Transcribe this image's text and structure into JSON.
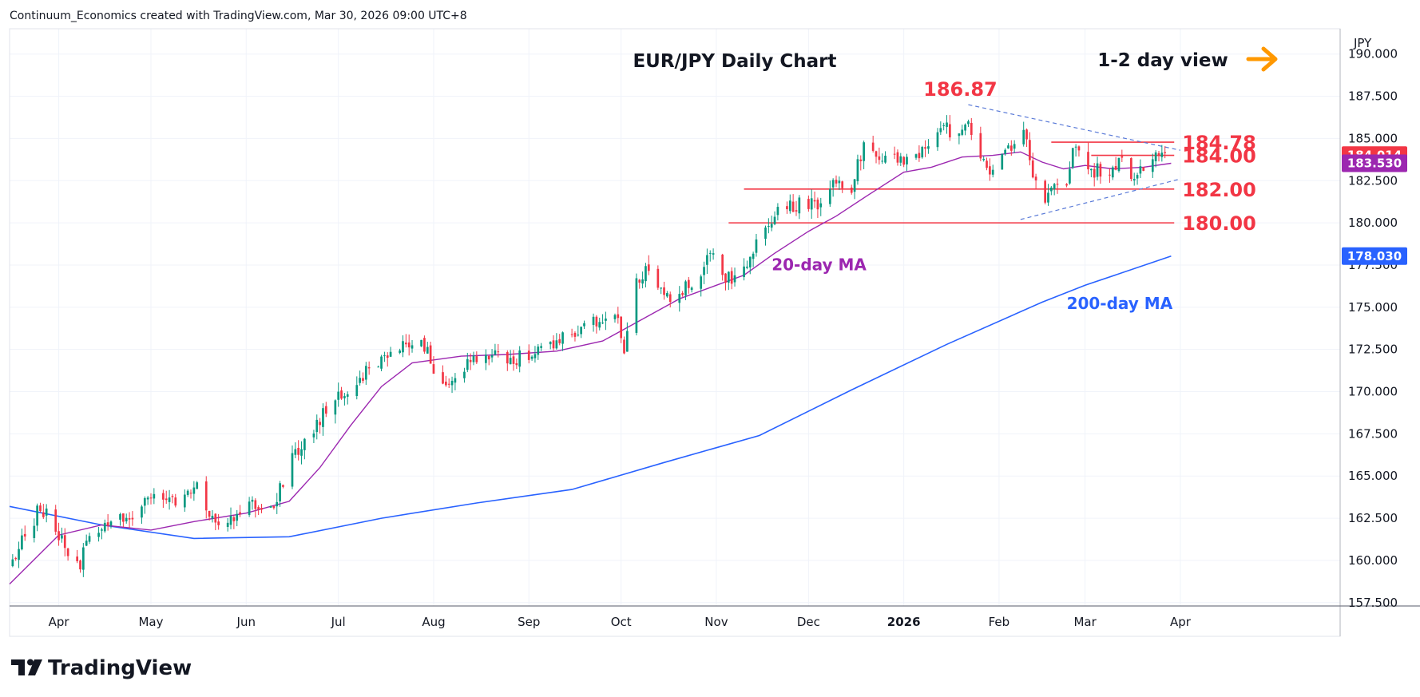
{
  "header": {
    "caption": "Continuum_Economics created with TradingView.com, Mar 30, 2026 09:00 UTC+8"
  },
  "footer": {
    "logo_text": "TradingView"
  },
  "chart_data": {
    "type": "candlestick",
    "title": "EUR/JPY Daily Chart",
    "view_note": "1-2 day view",
    "currency_label": "JPY",
    "y_ticks": [
      157.5,
      160,
      162.5,
      165,
      167.5,
      170,
      172.5,
      175,
      177.5,
      180,
      182.5,
      185,
      187.5,
      190
    ],
    "y_tick_labels": [
      "157.500",
      "160.000",
      "162.500",
      "165.000",
      "167.500",
      "170.000",
      "172.500",
      "175.000",
      "177.500",
      "180.000",
      "182.500",
      "185.000",
      "187.500",
      "190.000"
    ],
    "ylim": [
      157.3,
      191.5
    ],
    "grid": true,
    "x_range": [
      "2025-03-16",
      "2026-05-23"
    ],
    "x_ticks": [
      {
        "date": "2025-04-01",
        "label": "Apr",
        "bold": false
      },
      {
        "date": "2025-05-01",
        "label": "May",
        "bold": false
      },
      {
        "date": "2025-06-01",
        "label": "Jun",
        "bold": false
      },
      {
        "date": "2025-07-01",
        "label": "Jul",
        "bold": false
      },
      {
        "date": "2025-08-01",
        "label": "Aug",
        "bold": false
      },
      {
        "date": "2025-09-01",
        "label": "Sep",
        "bold": false
      },
      {
        "date": "2025-10-01",
        "label": "Oct",
        "bold": false
      },
      {
        "date": "2025-11-01",
        "label": "Nov",
        "bold": false
      },
      {
        "date": "2025-12-01",
        "label": "Dec",
        "bold": false
      },
      {
        "date": "2026-01-01",
        "label": "2026",
        "bold": true
      },
      {
        "date": "2026-02-01",
        "label": "Feb",
        "bold": false
      },
      {
        "date": "2026-03-01",
        "label": "Mar",
        "bold": false
      },
      {
        "date": "2026-04-01",
        "label": "Apr",
        "bold": false
      }
    ],
    "price_path": [
      [
        "2025-03-17",
        160.0
      ],
      [
        "2025-03-26",
        163.2
      ],
      [
        "2025-04-04",
        160.6
      ],
      [
        "2025-04-08",
        159.6
      ],
      [
        "2025-04-11",
        161.8
      ],
      [
        "2025-04-18",
        162.4
      ],
      [
        "2025-04-25",
        162.7
      ],
      [
        "2025-05-02",
        163.8
      ],
      [
        "2025-05-09",
        163.4
      ],
      [
        "2025-05-15",
        164.6
      ],
      [
        "2025-05-21",
        162.7
      ],
      [
        "2025-05-27",
        162.2
      ],
      [
        "2025-06-03",
        163.4
      ],
      [
        "2025-06-10",
        163.4
      ],
      [
        "2025-06-17",
        166.4
      ],
      [
        "2025-06-24",
        168.2
      ],
      [
        "2025-06-30",
        169.4
      ],
      [
        "2025-07-08",
        170.8
      ],
      [
        "2025-07-15",
        172.1
      ],
      [
        "2025-07-22",
        172.6
      ],
      [
        "2025-07-28",
        173.1
      ],
      [
        "2025-08-01",
        171.4
      ],
      [
        "2025-08-06",
        170.6
      ],
      [
        "2025-08-13",
        172.0
      ],
      [
        "2025-08-20",
        172.3
      ],
      [
        "2025-08-27",
        171.9
      ],
      [
        "2025-09-03",
        172.4
      ],
      [
        "2025-09-10",
        172.8
      ],
      [
        "2025-09-17",
        173.8
      ],
      [
        "2025-09-24",
        174.4
      ],
      [
        "2025-09-29",
        174.9
      ],
      [
        "2025-10-02",
        172.6
      ],
      [
        "2025-10-06",
        176.4
      ],
      [
        "2025-10-09",
        177.2
      ],
      [
        "2025-10-15",
        175.6
      ],
      [
        "2025-10-20",
        175.8
      ],
      [
        "2025-10-27",
        177.2
      ],
      [
        "2025-10-30",
        178.4
      ],
      [
        "2025-11-04",
        176.8
      ],
      [
        "2025-11-07",
        176.6
      ],
      [
        "2025-11-14",
        178.6
      ],
      [
        "2025-11-20",
        180.6
      ],
      [
        "2025-11-27",
        181.1
      ],
      [
        "2025-12-05",
        181.2
      ],
      [
        "2025-12-10",
        182.6
      ],
      [
        "2025-12-15",
        182.1
      ],
      [
        "2025-12-19",
        184.7
      ],
      [
        "2025-12-24",
        183.9
      ],
      [
        "2026-01-02",
        183.6
      ],
      [
        "2026-01-08",
        184.2
      ],
      [
        "2026-01-14",
        185.6
      ],
      [
        "2026-01-19",
        185.2
      ],
      [
        "2026-01-22",
        186.2
      ],
      [
        "2026-01-26",
        183.6
      ],
      [
        "2026-01-30",
        182.8
      ],
      [
        "2026-02-05",
        184.6
      ],
      [
        "2026-02-09",
        185.9
      ],
      [
        "2026-02-12",
        182.6
      ],
      [
        "2026-02-16",
        181.5
      ],
      [
        "2026-02-19",
        182.2
      ],
      [
        "2026-02-23",
        182.5
      ],
      [
        "2026-02-25",
        184.4
      ],
      [
        "2026-02-28",
        183.9
      ],
      [
        "2026-03-04",
        183.1
      ],
      [
        "2026-03-09",
        183.2
      ],
      [
        "2026-03-13",
        183.6
      ],
      [
        "2026-03-17",
        182.4
      ],
      [
        "2026-03-20",
        183.3
      ],
      [
        "2026-03-24",
        184.2
      ],
      [
        "2026-03-29",
        184.0
      ]
    ],
    "ma20": {
      "name": "20-day MA",
      "color": "#9c27b0",
      "points": [
        [
          "2025-03-16",
          158.6
        ],
        [
          "2025-04-01",
          161.5
        ],
        [
          "2025-04-15",
          162.1
        ],
        [
          "2025-05-01",
          161.8
        ],
        [
          "2025-05-15",
          162.3
        ],
        [
          "2025-06-01",
          162.8
        ],
        [
          "2025-06-15",
          163.5
        ],
        [
          "2025-06-25",
          165.5
        ],
        [
          "2025-07-05",
          168.0
        ],
        [
          "2025-07-15",
          170.3
        ],
        [
          "2025-07-25",
          171.7
        ],
        [
          "2025-08-10",
          172.1
        ],
        [
          "2025-08-25",
          172.2
        ],
        [
          "2025-09-10",
          172.4
        ],
        [
          "2025-09-25",
          173.0
        ],
        [
          "2025-10-05",
          174.0
        ],
        [
          "2025-10-20",
          175.5
        ],
        [
          "2025-11-01",
          176.3
        ],
        [
          "2025-11-10",
          176.9
        ],
        [
          "2025-11-20",
          178.2
        ],
        [
          "2025-12-01",
          179.5
        ],
        [
          "2025-12-10",
          180.4
        ],
        [
          "2025-12-20",
          181.6
        ],
        [
          "2026-01-01",
          183.0
        ],
        [
          "2026-01-10",
          183.3
        ],
        [
          "2026-01-20",
          183.9
        ],
        [
          "2026-01-30",
          184.0
        ],
        [
          "2026-02-08",
          184.2
        ],
        [
          "2026-02-15",
          183.6
        ],
        [
          "2026-02-22",
          183.2
        ],
        [
          "2026-03-01",
          183.4
        ],
        [
          "2026-03-10",
          183.2
        ],
        [
          "2026-03-20",
          183.3
        ],
        [
          "2026-03-29",
          183.53
        ]
      ]
    },
    "ma200": {
      "name": "200-day MA",
      "color": "#2962ff",
      "points": [
        [
          "2025-03-16",
          163.2
        ],
        [
          "2025-04-15",
          162.1
        ],
        [
          "2025-05-15",
          161.3
        ],
        [
          "2025-06-15",
          161.4
        ],
        [
          "2025-07-15",
          162.5
        ],
        [
          "2025-08-15",
          163.4
        ],
        [
          "2025-09-15",
          164.2
        ],
        [
          "2025-10-15",
          165.8
        ],
        [
          "2025-11-15",
          167.4
        ],
        [
          "2025-12-15",
          170.1
        ],
        [
          "2026-01-15",
          172.8
        ],
        [
          "2026-02-15",
          175.3
        ],
        [
          "2026-03-01",
          176.3
        ],
        [
          "2026-03-29",
          178.03
        ]
      ]
    },
    "levels": [
      {
        "value": 184.78,
        "label": "184.78",
        "from": "2026-02-18",
        "to": "2026-03-30"
      },
      {
        "value": 184.0,
        "label": "184.00",
        "from": "2026-03-03",
        "to": "2026-03-30"
      },
      {
        "value": 182.0,
        "label": "182.00",
        "from": "2025-11-10",
        "to": "2026-03-30"
      },
      {
        "value": 180.0,
        "label": "180.00",
        "from": "2025-11-05",
        "to": "2026-03-30"
      }
    ],
    "peak_label": {
      "value": 186.87,
      "label": "186.87",
      "date": "2026-01-22"
    },
    "trendlines": [
      {
        "from": [
          "2026-01-22",
          187.0
        ],
        "to": [
          "2026-04-01",
          184.3
        ]
      },
      {
        "from": [
          "2026-02-08",
          180.2
        ],
        "to": [
          "2026-04-01",
          182.6
        ]
      }
    ],
    "price_badges": [
      {
        "value": 184.014,
        "label": "184.014",
        "color": "#f23645"
      },
      {
        "value": 183.53,
        "label": "183.530",
        "color": "#9c27b0"
      },
      {
        "value": 178.03,
        "label": "178.030",
        "color": "#2962ff"
      }
    ],
    "colors": {
      "up": "#089981",
      "down": "#f23645",
      "level": "#f23645",
      "trend": "#5b7bd8",
      "arrow": "#ff9800",
      "grid": "#f0f3fa"
    }
  }
}
